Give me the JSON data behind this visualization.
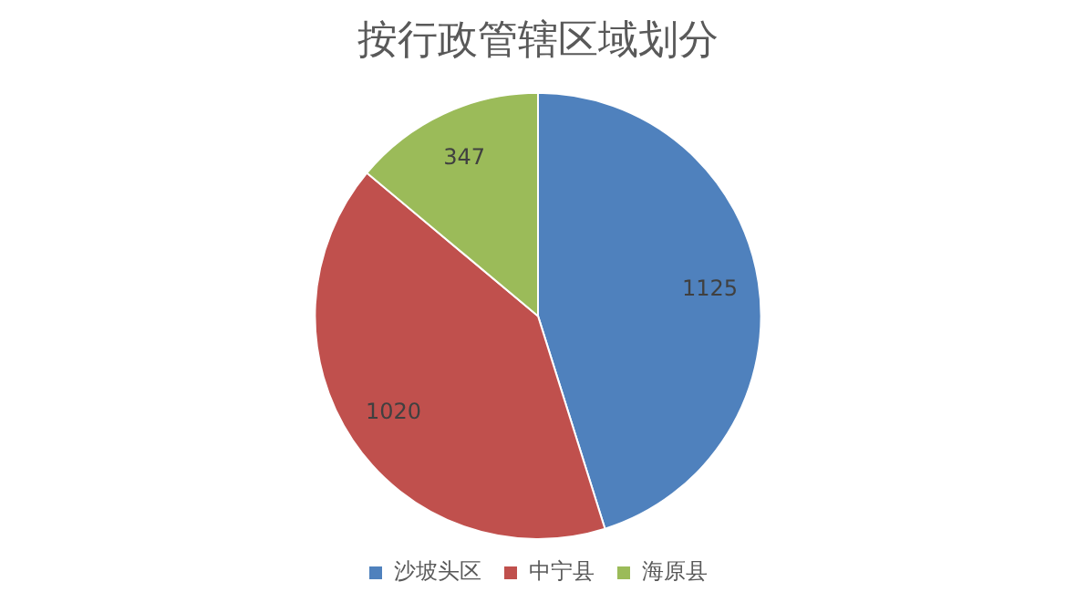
{
  "chart_data": {
    "type": "pie",
    "title": "按行政管辖区域划分",
    "categories": [
      "沙坡头区",
      "中宁县",
      "海原县"
    ],
    "values": [
      1125,
      1020,
      347
    ],
    "colors": [
      "#4f81bd",
      "#c0504d",
      "#9bbb59"
    ],
    "data_labels": true,
    "legend": "bottom"
  }
}
